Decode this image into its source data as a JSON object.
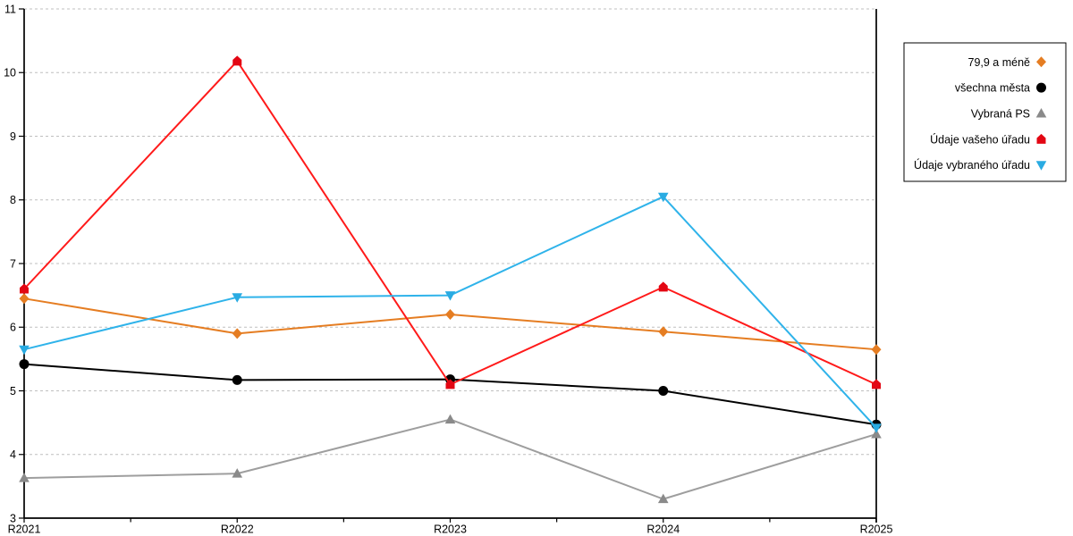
{
  "colors": {
    "background": "#FFFFFF",
    "axis": "#000000",
    "grid": "#BFBFBF",
    "text": "#000000",
    "legend_border": "#000000",
    "legend_background": "#FFFFFF"
  },
  "legend": {
    "position": "right",
    "items": [
      "79,9 a méně",
      "všechna města",
      "Vybraná PS",
      "Údaje vašeho úřadu",
      "Údaje vybraného úřadu"
    ]
  },
  "chart_data": {
    "type": "line",
    "title": "",
    "xlabel": "",
    "ylabel": "",
    "categories": [
      "R2021",
      "R2022",
      "R2023",
      "R2024",
      "R2025"
    ],
    "yticks": [
      3,
      4,
      5,
      6,
      7,
      8,
      9,
      10,
      11
    ],
    "ylim": [
      3,
      11
    ],
    "grid": "horizontal-dashed",
    "legend_position": "right",
    "series": [
      {
        "name": "79,9 a méně",
        "marker": "diamond",
        "color": "#E57D22",
        "marker_color": "#E57D22",
        "values": [
          6.45,
          5.9,
          6.2,
          5.93,
          5.65
        ]
      },
      {
        "name": "všechna města",
        "marker": "circle",
        "color": "#000000",
        "marker_color": "#000000",
        "values": [
          5.42,
          5.17,
          5.18,
          5.0,
          4.47
        ]
      },
      {
        "name": "Vybraná PS",
        "marker": "triangle-up",
        "color": "#9E9E9E",
        "marker_color": "#8A8A8A",
        "values": [
          3.63,
          3.7,
          4.55,
          3.3,
          4.32
        ]
      },
      {
        "name": "Údaje vašeho úřadu",
        "marker": "pentagon",
        "color": "#FF1A1A",
        "marker_color": "#E30613",
        "values": [
          6.6,
          10.18,
          5.1,
          6.63,
          5.1
        ]
      },
      {
        "name": "Údaje vybraného úřadu",
        "marker": "triangle-down",
        "color": "#2FB3EA",
        "marker_color": "#29ABE2",
        "values": [
          5.65,
          6.47,
          6.5,
          8.05,
          4.42
        ]
      }
    ]
  }
}
